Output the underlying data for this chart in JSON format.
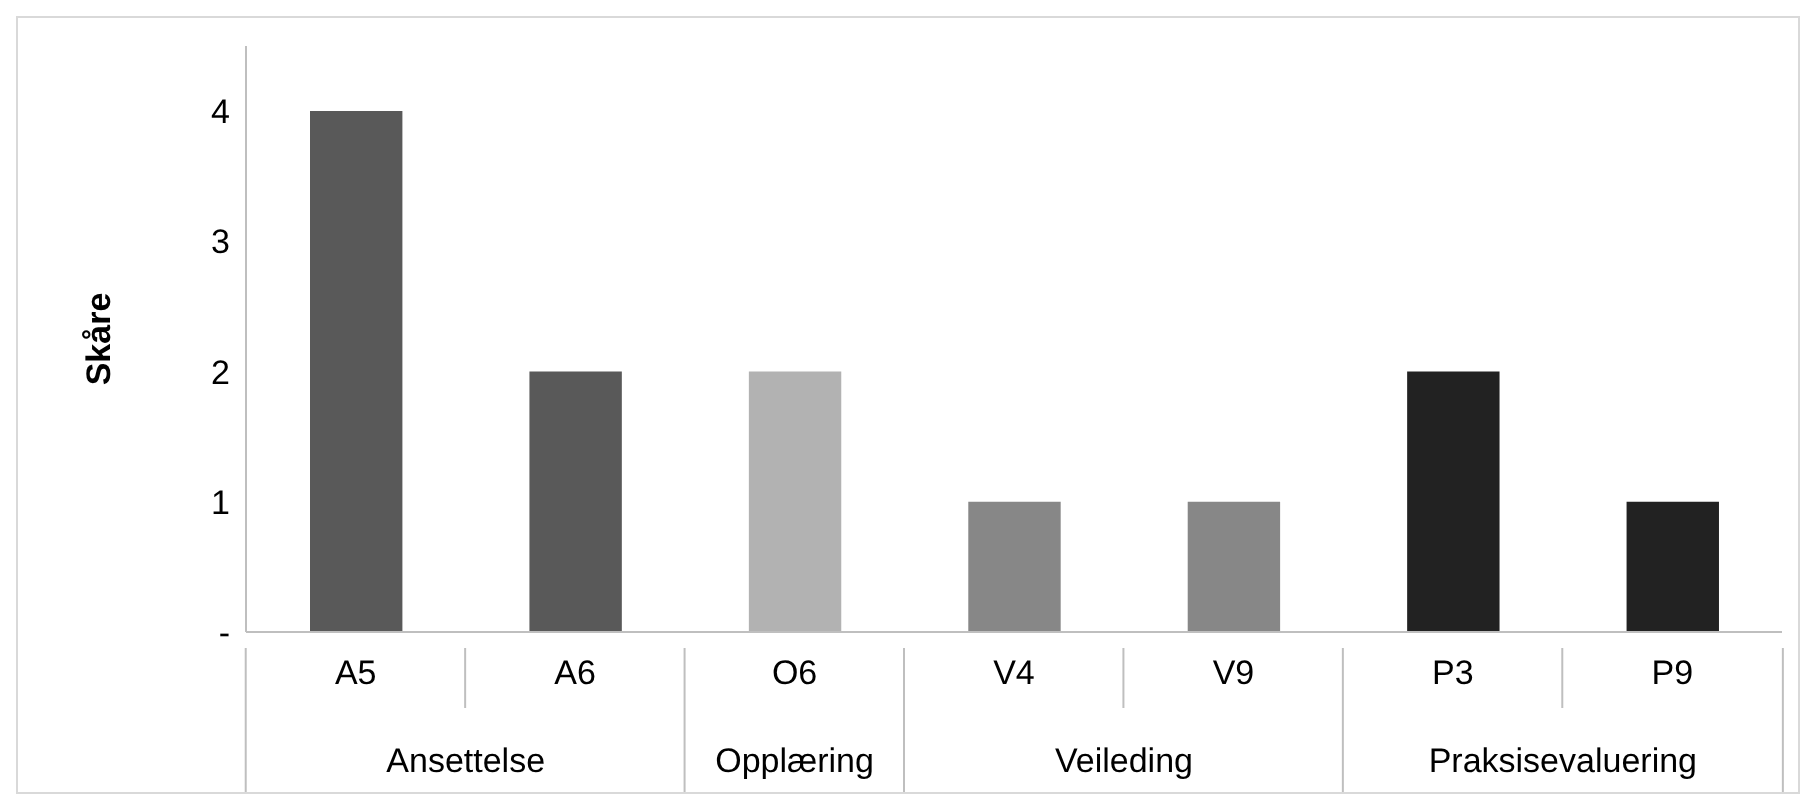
{
  "chart_data": {
    "type": "bar",
    "ylabel": "Skåre",
    "categories": [
      "A5",
      "A6",
      "O6",
      "V4",
      "V9",
      "P3",
      "P9"
    ],
    "values": [
      4,
      2,
      2,
      1,
      1,
      2,
      1
    ],
    "colors": [
      "#595959",
      "#595959",
      "#b2b2b2",
      "#878787",
      "#878787",
      "#222222",
      "#222222"
    ],
    "ylim": [
      0,
      4.5
    ],
    "yticks": [
      {
        "value": 0,
        "label": "-"
      },
      1,
      2,
      3,
      4
    ],
    "annotations": [
      "Ansettelse",
      "Opplæring",
      "Veileding",
      "Praksisevaluering"
    ],
    "grid": false,
    "legend": false
  }
}
